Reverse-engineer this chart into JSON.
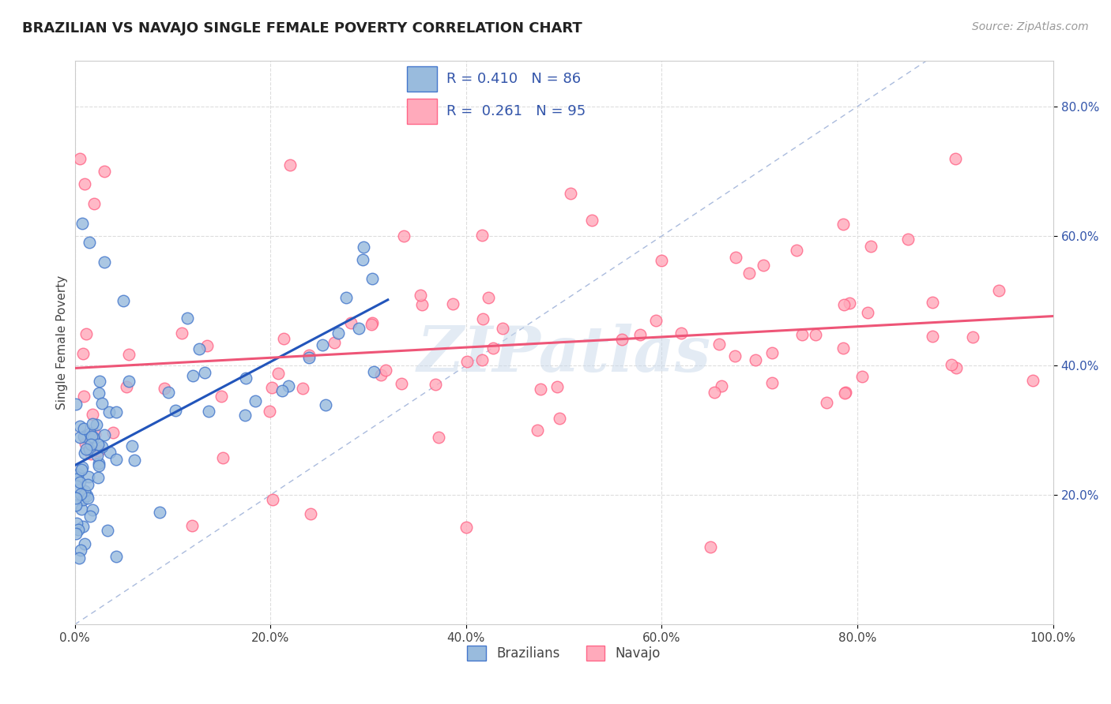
{
  "title": "BRAZILIAN VS NAVAJO SINGLE FEMALE POVERTY CORRELATION CHART",
  "source_text": "Source: ZipAtlas.com",
  "ylabel": "Single Female Poverty",
  "xlim": [
    0,
    1.0
  ],
  "ylim": [
    0,
    0.87
  ],
  "x_ticks": [
    0.0,
    0.2,
    0.4,
    0.6,
    0.8,
    1.0
  ],
  "x_tick_labels": [
    "0.0%",
    "20.0%",
    "40.0%",
    "60.0%",
    "80.0%",
    "100.0%"
  ],
  "y_ticks": [
    0.2,
    0.4,
    0.6,
    0.8
  ],
  "y_tick_labels": [
    "20.0%",
    "40.0%",
    "60.0%",
    "80.0%"
  ],
  "brazilians_color": "#99BBDD",
  "navajo_color": "#FFAABB",
  "brazilians_edge_color": "#4477CC",
  "navajo_edge_color": "#FF6688",
  "brazilians_line_color": "#2255BB",
  "navajo_line_color": "#EE5577",
  "diagonal_color": "#AABBDD",
  "watermark": "ZIPatlas",
  "legend_label_color": "#3355AA",
  "tick_label_color": "#3355AA",
  "R_brazilian": 0.41,
  "N_brazilian": 86,
  "R_navajo": 0.261,
  "N_navajo": 95,
  "title_fontsize": 13,
  "source_fontsize": 10,
  "tick_fontsize": 11,
  "ylabel_fontsize": 11,
  "legend_fontsize": 13
}
